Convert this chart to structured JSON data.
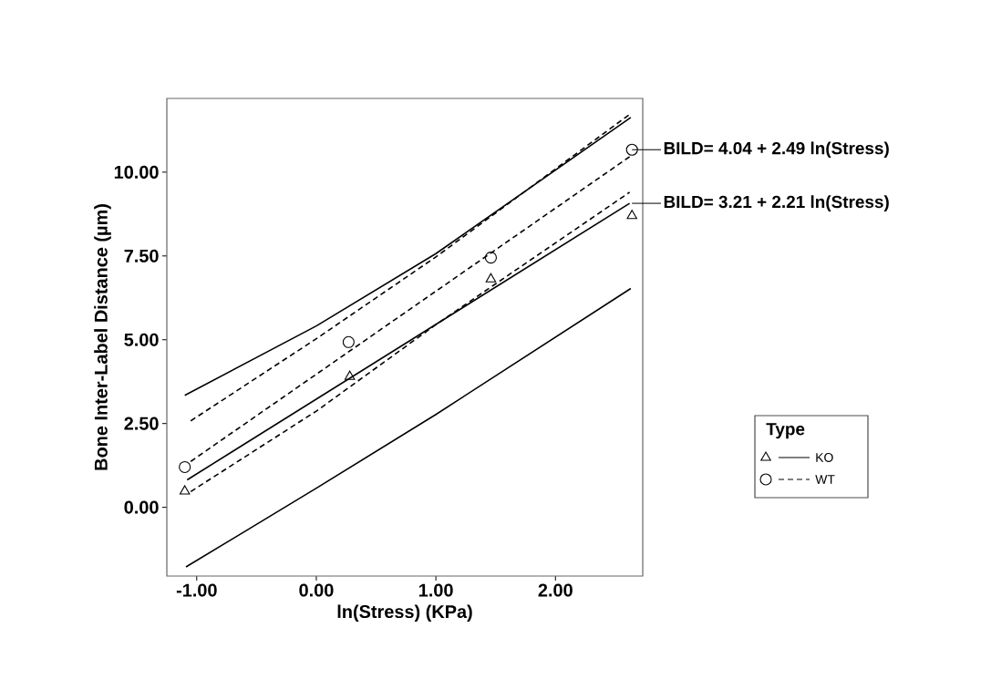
{
  "chart_data": {
    "type": "line",
    "xlabel": "ln(Stress) (KPa)",
    "ylabel": "Bone Inter-Label Distance (µm)",
    "legend_title": "Type",
    "legend": "right",
    "grid": false,
    "xlim": [
      -1.25,
      2.73
    ],
    "ylim": [
      -2.05,
      12.2
    ],
    "xticks": [
      {
        "value": -1,
        "label": "-1.00"
      },
      {
        "value": 0,
        "label": "0.00"
      },
      {
        "value": 1,
        "label": "1.00"
      },
      {
        "value": 2,
        "label": "2.00"
      }
    ],
    "yticks": [
      {
        "value": 0,
        "label": "0.00"
      },
      {
        "value": 2.5,
        "label": "2.50"
      },
      {
        "value": 5,
        "label": "5.00"
      },
      {
        "value": 7.5,
        "label": "7.50"
      },
      {
        "value": 10,
        "label": "10.00"
      }
    ],
    "series": [
      {
        "type": "scatter",
        "name": "KO",
        "marker": "triangle",
        "line_style": "solid",
        "color": "#000000",
        "x": [
          -1.1,
          0.28,
          1.46,
          2.64
        ],
        "values": [
          0.48,
          3.9,
          6.81,
          8.7
        ]
      },
      {
        "type": "scatter",
        "name": "WT",
        "marker": "circle",
        "line_style": "dashed",
        "color": "#000000",
        "x": [
          -1.1,
          0.27,
          1.46,
          2.64
        ],
        "values": [
          1.2,
          4.93,
          7.45,
          10.67
        ]
      },
      {
        "line_style": "solid",
        "color": "#000000",
        "x": [
          -1.08,
          2.62
        ],
        "values": [
          0.82,
          9.07
        ]
      },
      {
        "line_style": "solid",
        "color": "#000000",
        "x": [
          -1.1,
          0,
          1,
          2.63
        ],
        "values": [
          3.34,
          5.41,
          7.57,
          11.63
        ]
      },
      {
        "line_style": "solid",
        "color": "#000000",
        "x": [
          -1.09,
          0,
          1,
          2.63
        ],
        "values": [
          -1.78,
          0.57,
          2.77,
          6.53
        ]
      },
      {
        "line_style": "dashed",
        "color": "#000000",
        "x": [
          -1.05,
          2.62
        ],
        "values": [
          1.37,
          10.46
        ]
      },
      {
        "line_style": "dashed",
        "color": "#000000",
        "x": [
          -1.05,
          0,
          1,
          2.63
        ],
        "values": [
          2.58,
          5.03,
          7.47,
          11.75
        ]
      },
      {
        "line_style": "dashed",
        "color": "#000000",
        "x": [
          -1.05,
          0,
          1,
          2.62
        ],
        "values": [
          0.47,
          2.87,
          5.45,
          9.4
        ]
      }
    ],
    "annotations": [
      {
        "text": "BILD= 4.04 + 2.49 ln(Stress)",
        "x": 2.64,
        "y": 10.67
      },
      {
        "text": "BILD= 3.21 + 2.21 ln(Stress)",
        "x": 2.64,
        "y": 9.07
      }
    ]
  }
}
